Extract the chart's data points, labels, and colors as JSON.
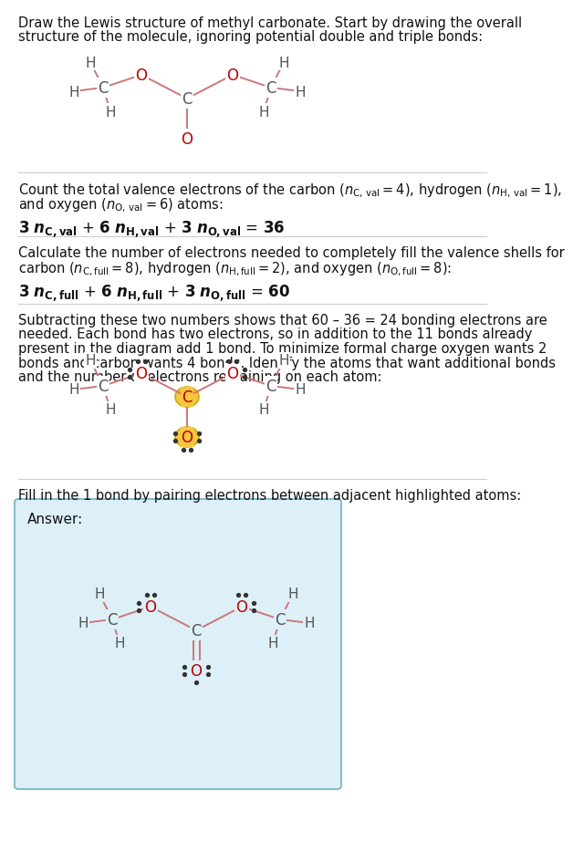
{
  "bg_color": "#ffffff",
  "text_color": "#111111",
  "red_color": "#bb0000",
  "bond_color": "#cc7777",
  "atom_gray": "#555555",
  "highlight_yellow": "#f5c842",
  "highlight_border": "#d4a800",
  "answer_bg": "#ddf0f8",
  "answer_border": "#88bbcc",
  "sep_color": "#cccccc",
  "dot_color": "#333333",
  "title1": "Draw the Lewis structure of methyl carbonate. Start by drawing the overall",
  "title2": "structure of the molecule, ignoring potential double and triple bonds:",
  "sec2_l1": "Count the total valence electrons of the carbon (",
  "sec2_l2": "and oxygen (",
  "sec2_eq": "3 ",
  "sec3_l1": "Calculate the number of electrons needed to completely fill the valence shells for",
  "sec3_l2": "carbon (",
  "sec4_lines": [
    "Subtracting these two numbers shows that 60 – 36 = 24 bonding electrons are",
    "needed. Each bond has two electrons, so in addition to the 11 bonds already",
    "present in the diagram add 1 bond. To minimize formal charge oxygen wants 2",
    "bonds and carbon wants 4 bonds. Identify the atoms that want additional bonds",
    "and the number of electrons remaining on each atom:"
  ],
  "sec5": "Fill in the 1 bond by pairing electrons between adjacent highlighted atoms:"
}
